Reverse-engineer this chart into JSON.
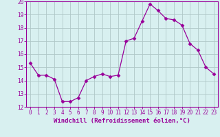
{
  "x": [
    0,
    1,
    2,
    3,
    4,
    5,
    6,
    7,
    8,
    9,
    10,
    11,
    12,
    13,
    14,
    15,
    16,
    17,
    18,
    19,
    20,
    21,
    22,
    23
  ],
  "y": [
    15.3,
    14.4,
    14.4,
    14.1,
    12.4,
    12.4,
    12.7,
    14.0,
    14.3,
    14.5,
    14.3,
    14.4,
    17.0,
    17.2,
    18.5,
    19.8,
    19.3,
    18.7,
    18.6,
    18.2,
    16.8,
    16.3,
    15.0,
    14.5
  ],
  "line_color": "#990099",
  "marker": "D",
  "marker_size": 2.5,
  "bg_color": "#d8f0f0",
  "grid_color": "#b0c8c8",
  "xlabel": "Windchill (Refroidissement éolien,°C)",
  "xlim": [
    -0.5,
    23.5
  ],
  "ylim": [
    12,
    20
  ],
  "yticks": [
    12,
    13,
    14,
    15,
    16,
    17,
    18,
    19,
    20
  ],
  "xticks": [
    0,
    1,
    2,
    3,
    4,
    5,
    6,
    7,
    8,
    9,
    10,
    11,
    12,
    13,
    14,
    15,
    16,
    17,
    18,
    19,
    20,
    21,
    22,
    23
  ],
  "tick_label_fontsize": 5.5,
  "xlabel_fontsize": 6.5,
  "xlabel_color": "#990099",
  "tick_color": "#990099",
  "spine_color": "#990099"
}
